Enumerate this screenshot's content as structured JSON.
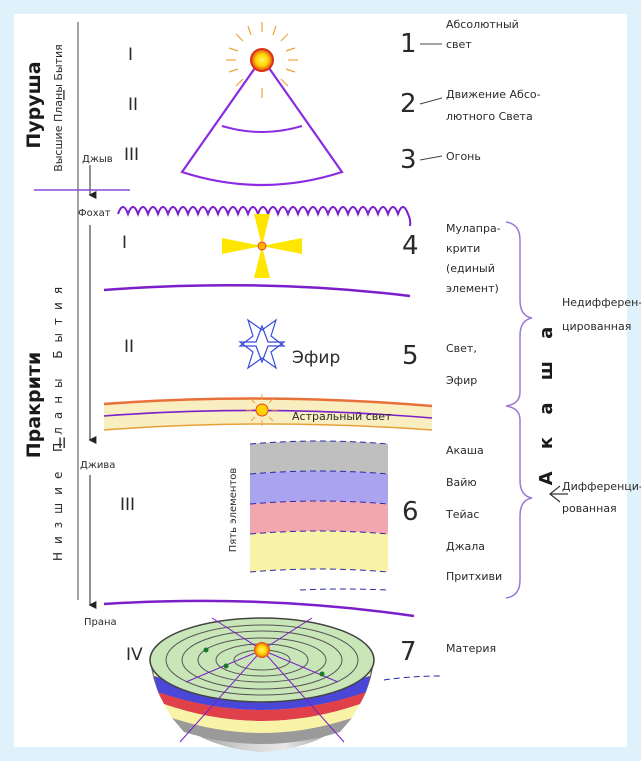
{
  "diagram": {
    "purusha": {
      "title": "Пуруша",
      "subtitle": "Высшие Планы Бытия",
      "group_numeral": "I"
    },
    "prakriti": {
      "title": "Пракрити",
      "subtitle": "Низшие Планы Бытия",
      "group_numeral": "II"
    },
    "flow_labels": {
      "jiva_upper": "Джыв",
      "fohat": "Фохат",
      "jiva": "Джива",
      "prana": "Прана"
    },
    "sublevels": {
      "top_1": "I",
      "top_2": "II",
      "top_3": "III",
      "mid_1": "I",
      "mid_2": "II",
      "mid_3": "III",
      "mid_4": "IV"
    },
    "numbered": {
      "n1": "1",
      "n1_text_a": "Абсолютный",
      "n1_text_b": "свет",
      "n2": "2",
      "n2_text_a": "Движение Абсо-",
      "n2_text_b": "лютного Света",
      "n3": "3",
      "n3_text": "Огонь",
      "n4": "4",
      "n4_text_a": "Мулапра-",
      "n4_text_b": "крити",
      "n4_text_c": "(единый",
      "n4_text_d": "элемент)",
      "n5": "5",
      "n5_text_a": "Свет,",
      "n5_text_b": "Эфир",
      "n6": "6",
      "n6_elements": [
        "Акаша",
        "Вайю",
        "Тейас",
        "Джала",
        "Притхиви"
      ],
      "n7": "7",
      "n7_text": "Материя"
    },
    "inline": {
      "efir": "Эфир",
      "astral": "Астральный свет",
      "five_elements": "Пять элементов"
    },
    "akasha": {
      "word": "А к а ш а",
      "undiff_a": "Недифферен-",
      "undiff_b": "цированная",
      "diff_a": "Дифференци-",
      "diff_b": "рованная"
    },
    "colors": {
      "accent": "#7a1fc9",
      "sun_yellow": "#ffe600",
      "sun_red": "#e8431a",
      "band_gray": "#bfbfbf",
      "band_blue": "#a9a3f0",
      "band_red": "#f1a6b0",
      "band_yellow": "#f8f3a6"
    }
  }
}
